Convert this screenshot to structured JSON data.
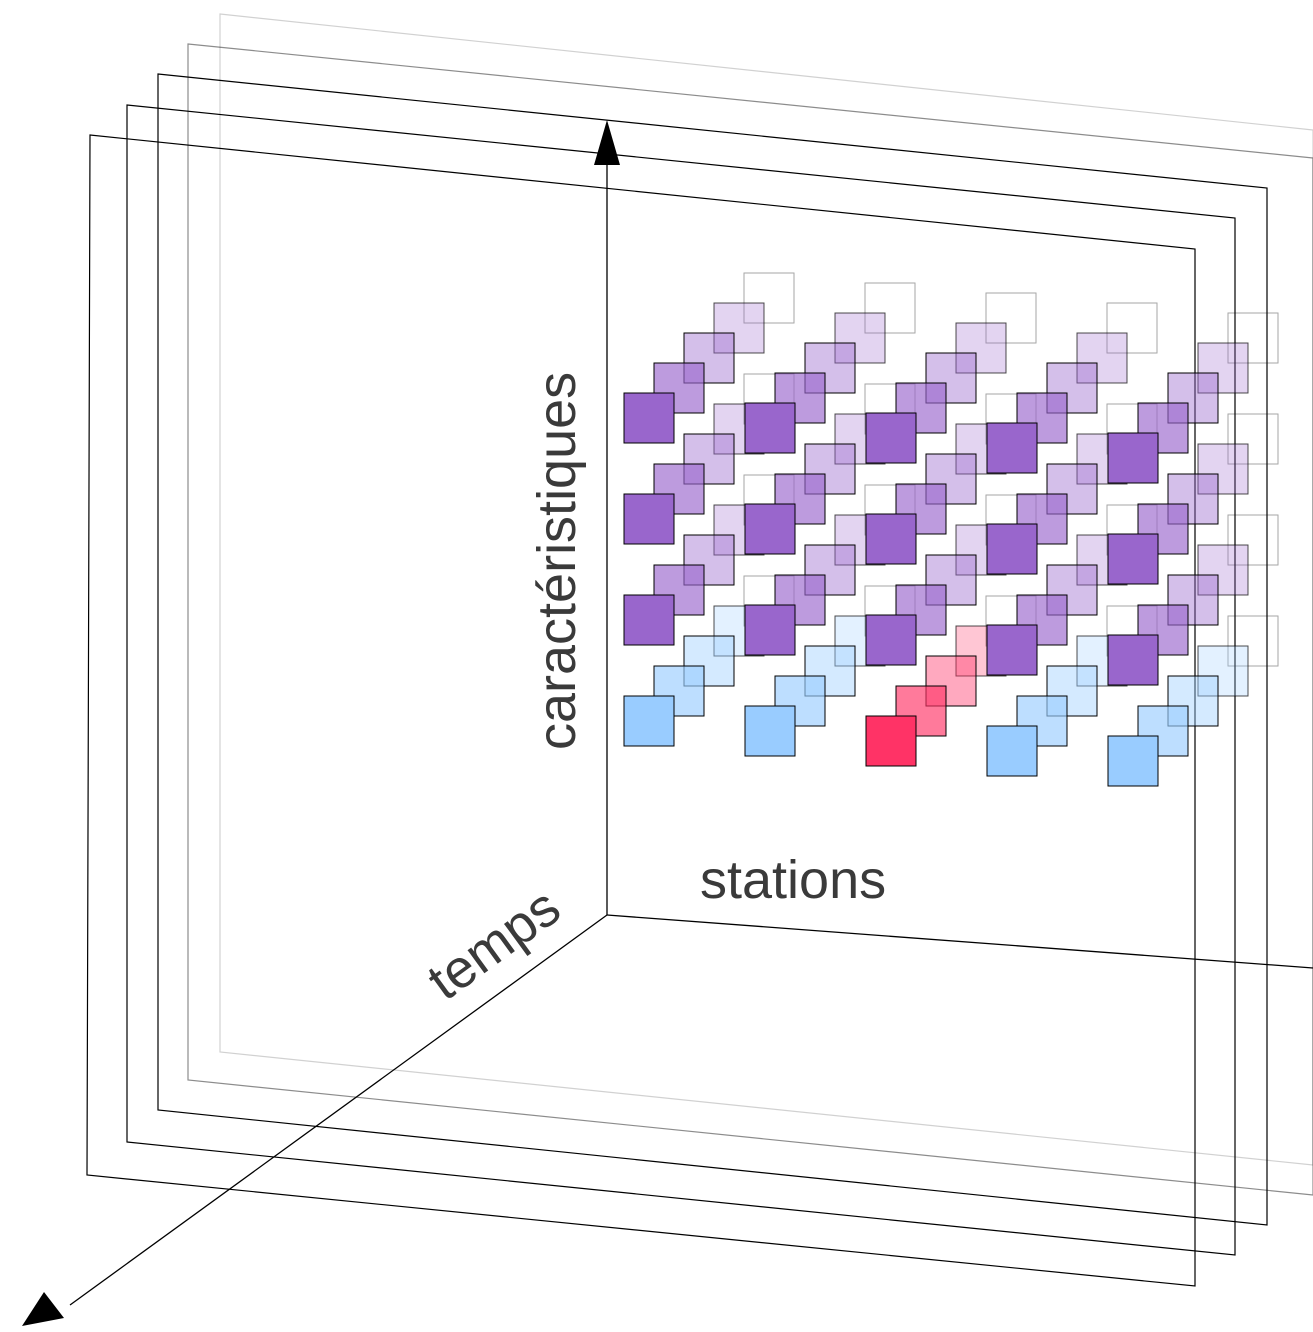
{
  "labels": {
    "y_axis": "caractéristiques",
    "x_axis": "stations",
    "z_axis": "temps"
  },
  "colors": {
    "purple": "#9966cc",
    "blue": "#99ccff",
    "red": "#ff3366",
    "outline": "#000000"
  },
  "tensor": {
    "stations": 5,
    "features": 4,
    "time_slices": 5,
    "highlighted_cell": {
      "station": 3,
      "feature": 4,
      "color": "red"
    },
    "feature_row_colors": [
      "purple",
      "purple",
      "purple",
      "blue"
    ]
  }
}
